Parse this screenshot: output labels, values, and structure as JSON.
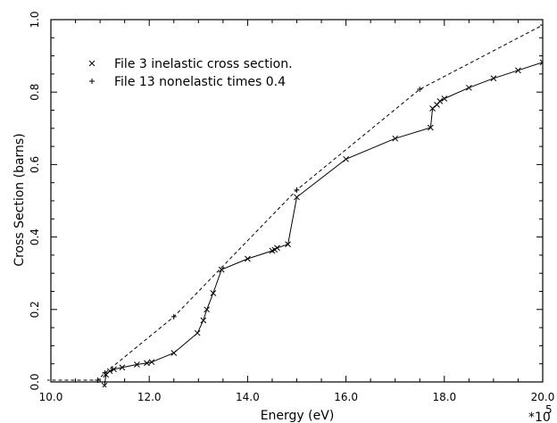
{
  "chart_data": {
    "type": "line",
    "title": "",
    "xlabel": "Energy (eV)",
    "ylabel": "Cross Section (barns)",
    "x_multiplier_label": "*10",
    "x_multiplier_exponent": "5",
    "xlim": [
      10.0,
      20.0
    ],
    "ylim": [
      0.0,
      1.0
    ],
    "xticks": [
      10,
      12,
      14,
      16,
      18,
      20
    ],
    "xtick_labels": [
      "10.0",
      "12.0",
      "14.0",
      "16.0",
      "18.0",
      "20.0"
    ],
    "yticks": [
      0,
      0.2,
      0.4,
      0.6,
      0.8,
      1.0
    ],
    "ytick_labels": [
      "0.0",
      "0.2",
      "0.4",
      "0.6",
      "0.8",
      "1.0"
    ],
    "grid": false,
    "legend_position": "top-left",
    "series": [
      {
        "name": "File 3 inelastic cross section.",
        "marker": "x",
        "line_style": "solid",
        "x": [
          11.09,
          11.12,
          11.2,
          11.28,
          11.45,
          11.75,
          11.95,
          12.05,
          12.5,
          12.98,
          13.1,
          13.17,
          13.3,
          13.47,
          14.0,
          14.5,
          14.55,
          14.6,
          14.82,
          15.0,
          16.0,
          17.0,
          17.72,
          17.76,
          17.85,
          17.91,
          18.0,
          18.5,
          19.0,
          19.5,
          20.0
        ],
        "y": [
          -0.01,
          0.02,
          0.03,
          0.035,
          0.04,
          0.048,
          0.052,
          0.055,
          0.08,
          0.135,
          0.17,
          0.2,
          0.245,
          0.31,
          0.34,
          0.362,
          0.365,
          0.37,
          0.38,
          0.51,
          0.615,
          0.672,
          0.702,
          0.755,
          0.765,
          0.775,
          0.782,
          0.812,
          0.838,
          0.86,
          0.882
        ]
      },
      {
        "name": "File 13 nonelastic times 0.4",
        "marker": "+",
        "line_style": "dashed",
        "x": [
          9.9,
          10.95,
          11.1,
          12.5,
          15.0,
          17.5,
          20.0
        ],
        "y": [
          0.005,
          0.005,
          0.025,
          0.18,
          0.53,
          0.808,
          0.985
        ]
      }
    ]
  }
}
